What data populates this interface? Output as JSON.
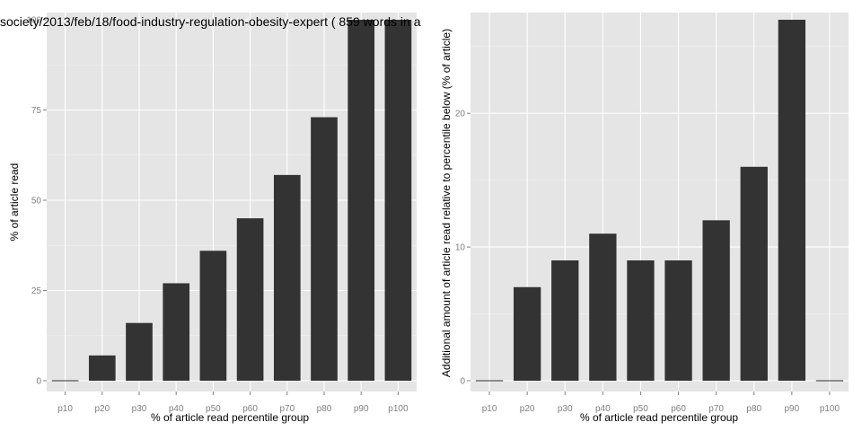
{
  "chart_data": [
    {
      "type": "bar",
      "title": "society/2013/feb/18/food-industry-regulation-obesity-expert ( 859 words in a",
      "xlabel": "% of article read percentile group",
      "ylabel": "% of article read",
      "categories": [
        "p10",
        "p20",
        "p30",
        "p40",
        "p50",
        "p60",
        "p70",
        "p80",
        "p90",
        "p100"
      ],
      "values": [
        0,
        7,
        16,
        27,
        36,
        45,
        57,
        73,
        100,
        100
      ],
      "ylim": [
        0,
        100
      ],
      "yticks": [
        0,
        25,
        50,
        75,
        100
      ],
      "grid": true,
      "bar_color": "#333333",
      "panel_color": "#e5e5e5"
    },
    {
      "type": "bar",
      "title": "",
      "xlabel": "% of article read percentile group",
      "ylabel": "Additional amount of article read relative to percentile below (% of article)",
      "categories": [
        "p10",
        "p20",
        "p30",
        "p40",
        "p50",
        "p60",
        "p70",
        "p80",
        "p90",
        "p100"
      ],
      "values": [
        0,
        7,
        9,
        11,
        9,
        9,
        12,
        16,
        27,
        0
      ],
      "ylim": [
        0,
        27
      ],
      "yticks": [
        0,
        10,
        20
      ],
      "grid": true,
      "bar_color": "#333333",
      "panel_color": "#e5e5e5"
    }
  ]
}
